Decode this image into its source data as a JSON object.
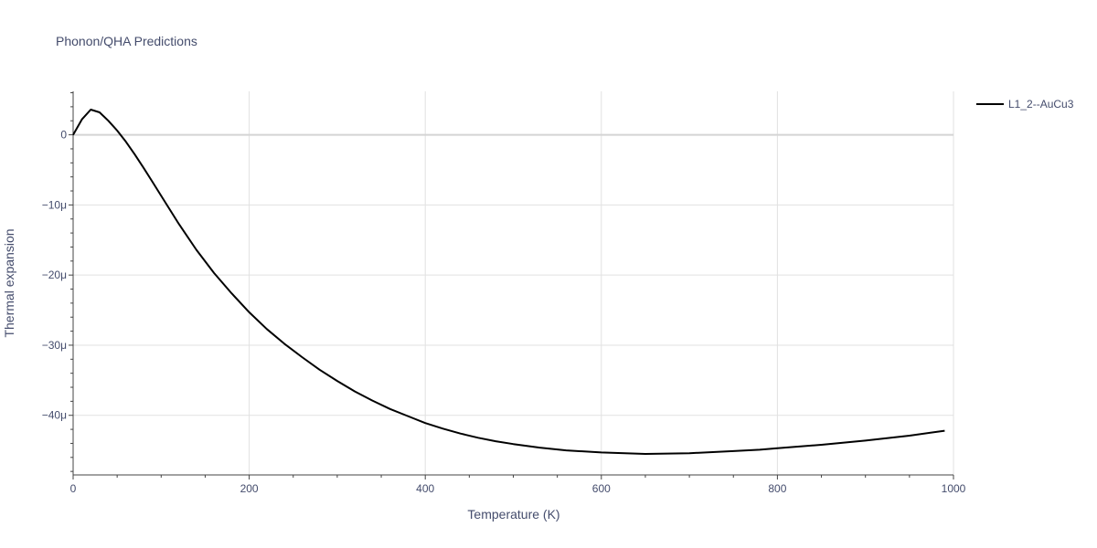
{
  "chart_data": {
    "type": "line",
    "title": "Phonon/QHA Predictions",
    "xlabel": "Temperature (K)",
    "ylabel": "Thermal expansion",
    "xlim": [
      0,
      1000
    ],
    "ylim": [
      -48.5,
      6.2
    ],
    "x_ticks": [
      0,
      200,
      400,
      600,
      800,
      1000
    ],
    "y_ticks": [
      0,
      -10,
      -20,
      -30,
      -40
    ],
    "y_tick_labels": [
      "0",
      "−10μ",
      "−20μ",
      "−30μ",
      "−40μ"
    ],
    "grid": true,
    "legend_position": "top-right",
    "colors": {
      "series": "#000000",
      "grid": "#e1e1e1",
      "zeroline": "#d4d4d4",
      "text": "#444c6c"
    },
    "series": [
      {
        "name": "L1_2--AuCu3",
        "x": [
          0,
          10,
          20,
          30,
          40,
          50,
          60,
          70,
          80,
          90,
          100,
          120,
          140,
          160,
          180,
          200,
          220,
          240,
          260,
          280,
          300,
          320,
          340,
          360,
          380,
          400,
          420,
          440,
          460,
          480,
          500,
          530,
          560,
          600,
          650,
          700,
          750,
          780,
          800,
          850,
          900,
          950,
          990
        ],
        "y": [
          0,
          2.2,
          3.6,
          3.2,
          2.0,
          0.6,
          -1.0,
          -2.8,
          -4.7,
          -6.7,
          -8.7,
          -12.7,
          -16.4,
          -19.7,
          -22.6,
          -25.3,
          -27.7,
          -29.8,
          -31.7,
          -33.5,
          -35.1,
          -36.6,
          -37.9,
          -39.1,
          -40.1,
          -41.1,
          -41.9,
          -42.6,
          -43.2,
          -43.7,
          -44.1,
          -44.6,
          -45.0,
          -45.3,
          -45.5,
          -45.4,
          -45.1,
          -44.9,
          -44.7,
          -44.2,
          -43.6,
          -42.9,
          -42.2
        ]
      }
    ]
  }
}
